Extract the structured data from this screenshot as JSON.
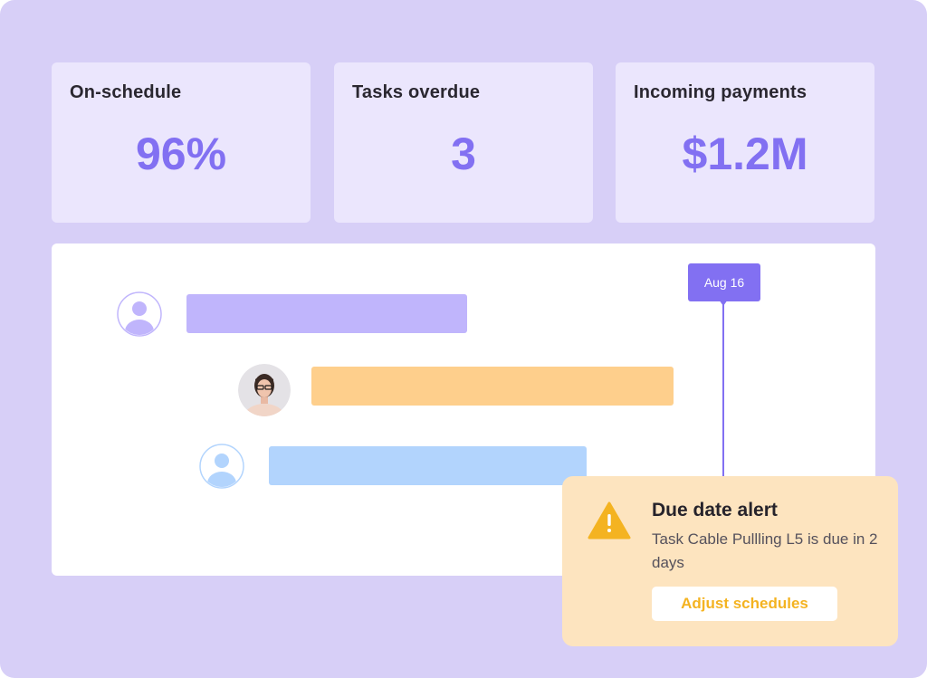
{
  "metrics": [
    {
      "label": "On-schedule",
      "value": "96%"
    },
    {
      "label": "Tasks overdue",
      "value": "3"
    },
    {
      "label": "Incoming payments",
      "value": "$1.2M"
    }
  ],
  "timeline": {
    "marker_date": "Aug 16",
    "tasks": [
      {
        "assignee_icon": "user-icon",
        "color": "#c0b5fc"
      },
      {
        "assignee_icon": "user-photo",
        "color": "#fecf8c"
      },
      {
        "assignee_icon": "user-icon",
        "color": "#b2d4fd"
      }
    ]
  },
  "alert": {
    "title": "Due date alert",
    "message": "Task Cable Pullling L5 is due in 2 days",
    "button_label": "Adjust schedules",
    "icon": "warning-icon"
  },
  "colors": {
    "accent": "#8270f2",
    "background": "#d7cff7",
    "card": "#ebe6fd",
    "alert_bg": "#fde4bf",
    "alert_button_text": "#f4b321"
  }
}
